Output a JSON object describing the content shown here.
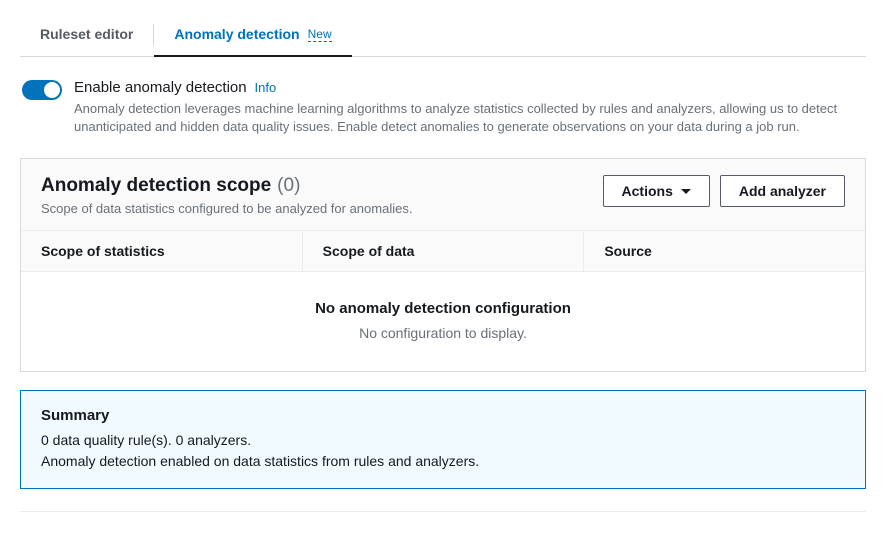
{
  "tabs": {
    "ruleset": "Ruleset editor",
    "anomaly": "Anomaly detection",
    "new_badge": "New"
  },
  "toggle": {
    "label": "Enable anomaly detection",
    "info": "Info",
    "description": "Anomaly detection leverages machine learning algorithms to analyze statistics collected by rules and analyzers, allowing us to detect unanticipated and hidden data quality issues. Enable detect anomalies to generate observations on your data during a job run."
  },
  "scope_panel": {
    "title": "Anomaly detection scope",
    "count": "(0)",
    "subtitle": "Scope of data statistics configured to be analyzed for anomalies.",
    "actions_btn": "Actions",
    "add_btn": "Add analyzer",
    "columns": {
      "c1": "Scope of statistics",
      "c2": "Scope of data",
      "c3": "Source"
    },
    "empty_title": "No anomaly detection configuration",
    "empty_sub": "No configuration to display."
  },
  "summary": {
    "title": "Summary",
    "line1": "0 data quality rule(s). 0 analyzers.",
    "line2": "Anomaly detection enabled on data statistics from rules and analyzers."
  }
}
